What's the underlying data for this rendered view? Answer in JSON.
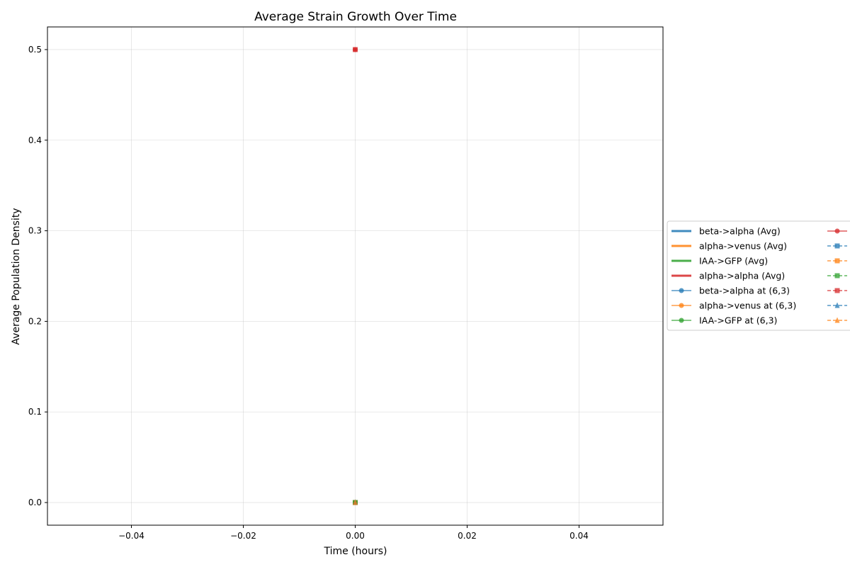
{
  "chart_data": {
    "type": "line",
    "title": "Average Strain Growth Over Time",
    "xlabel": "Time (hours)",
    "ylabel": "Average Population Density",
    "xlim": [
      -0.055,
      0.055
    ],
    "ylim": [
      -0.025,
      0.525
    ],
    "xticks": [
      -0.04,
      -0.02,
      0.0,
      0.02,
      0.04
    ],
    "xtick_labels": [
      "−0.04",
      "−0.02",
      "0.00",
      "0.02",
      "0.04"
    ],
    "yticks": [
      0.0,
      0.1,
      0.2,
      0.3,
      0.4,
      0.5
    ],
    "ytick_labels": [
      "0.0",
      "0.1",
      "0.2",
      "0.3",
      "0.4",
      "0.5"
    ],
    "grid": true,
    "legend_position": "right",
    "series": [
      {
        "name": "beta->alpha (Avg)",
        "color": "#1f77b4",
        "style": "solid-thick",
        "marker": "none",
        "x": [
          0
        ],
        "y": [
          0.0
        ]
      },
      {
        "name": "alpha->venus (Avg)",
        "color": "#ff7f0e",
        "style": "solid-thick",
        "marker": "none",
        "x": [
          0
        ],
        "y": [
          0.0
        ]
      },
      {
        "name": "IAA->GFP (Avg)",
        "color": "#2ca02c",
        "style": "solid-thick",
        "marker": "none",
        "x": [
          0
        ],
        "y": [
          0.0
        ]
      },
      {
        "name": "alpha->alpha (Avg)",
        "color": "#d62728",
        "style": "solid-thick",
        "marker": "none",
        "x": [
          0
        ],
        "y": [
          0.5
        ]
      },
      {
        "name": "beta->alpha at (6,3)",
        "color": "#1f77b4",
        "style": "solid",
        "marker": "circle",
        "x": [
          0
        ],
        "y": [
          0.0
        ]
      },
      {
        "name": "alpha->venus at (6,3)",
        "color": "#ff7f0e",
        "style": "solid",
        "marker": "circle",
        "x": [
          0
        ],
        "y": [
          0.0
        ]
      },
      {
        "name": "IAA->GFP at (6,3)",
        "color": "#2ca02c",
        "style": "solid",
        "marker": "circle",
        "x": [
          0
        ],
        "y": [
          0.0
        ]
      },
      {
        "name": "",
        "color": "#d62728",
        "style": "solid",
        "marker": "circle",
        "x": [
          0
        ],
        "y": [
          0.5
        ]
      },
      {
        "name": "",
        "color": "#1f77b4",
        "style": "dashed",
        "marker": "square",
        "x": [
          0
        ],
        "y": [
          0.0
        ]
      },
      {
        "name": "",
        "color": "#ff7f0e",
        "style": "dashed",
        "marker": "square",
        "x": [
          0
        ],
        "y": [
          0.0
        ]
      },
      {
        "name": "",
        "color": "#2ca02c",
        "style": "dashed",
        "marker": "square",
        "x": [
          0
        ],
        "y": [
          0.0
        ]
      },
      {
        "name": "",
        "color": "#d62728",
        "style": "dashed",
        "marker": "square",
        "x": [
          0
        ],
        "y": [
          0.5
        ]
      },
      {
        "name": "",
        "color": "#1f77b4",
        "style": "dashed",
        "marker": "triangle",
        "x": [
          0
        ],
        "y": [
          0.0
        ]
      },
      {
        "name": "",
        "color": "#ff7f0e",
        "style": "dashed",
        "marker": "triangle",
        "x": [
          0
        ],
        "y": [
          0.0
        ]
      }
    ]
  }
}
